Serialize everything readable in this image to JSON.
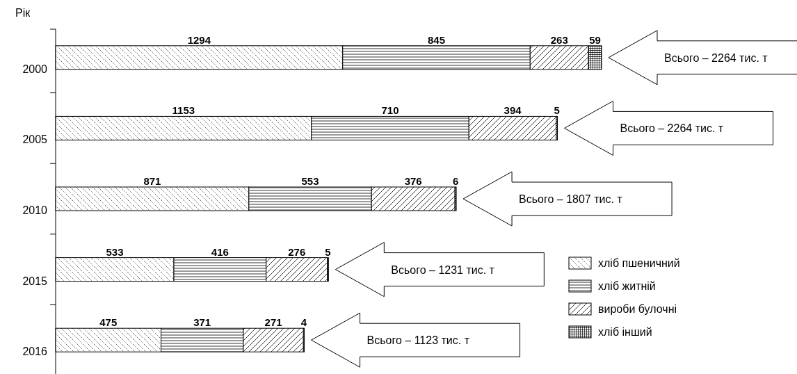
{
  "chart_data": {
    "type": "bar",
    "orientation": "horizontal",
    "stacked": true,
    "ylabel": "Рік",
    "categories": [
      "2000",
      "2005",
      "2010",
      "2015",
      "2016"
    ],
    "series": [
      {
        "name": "хліб пшеничний",
        "color": "#000000",
        "values": [
          1294,
          1153,
          871,
          533,
          475
        ]
      },
      {
        "name": "хліб житній",
        "color": "#000000",
        "values": [
          845,
          710,
          553,
          416,
          371
        ]
      },
      {
        "name": "вироби булочні",
        "color": "#000000",
        "values": [
          263,
          394,
          376,
          276,
          271
        ]
      },
      {
        "name": "хліб інший",
        "color": "#000000",
        "values": [
          59,
          5,
          6,
          5,
          4
        ]
      }
    ],
    "data_labels": true,
    "legend": "bottom right",
    "annotations": [
      "Всього – 2264 тис. т",
      "Всього – 2264 тис. т",
      "Всього – 1807 тис. т",
      "Всього – 1231 тис. т",
      "Всього – 1123 тис. т"
    ]
  }
}
